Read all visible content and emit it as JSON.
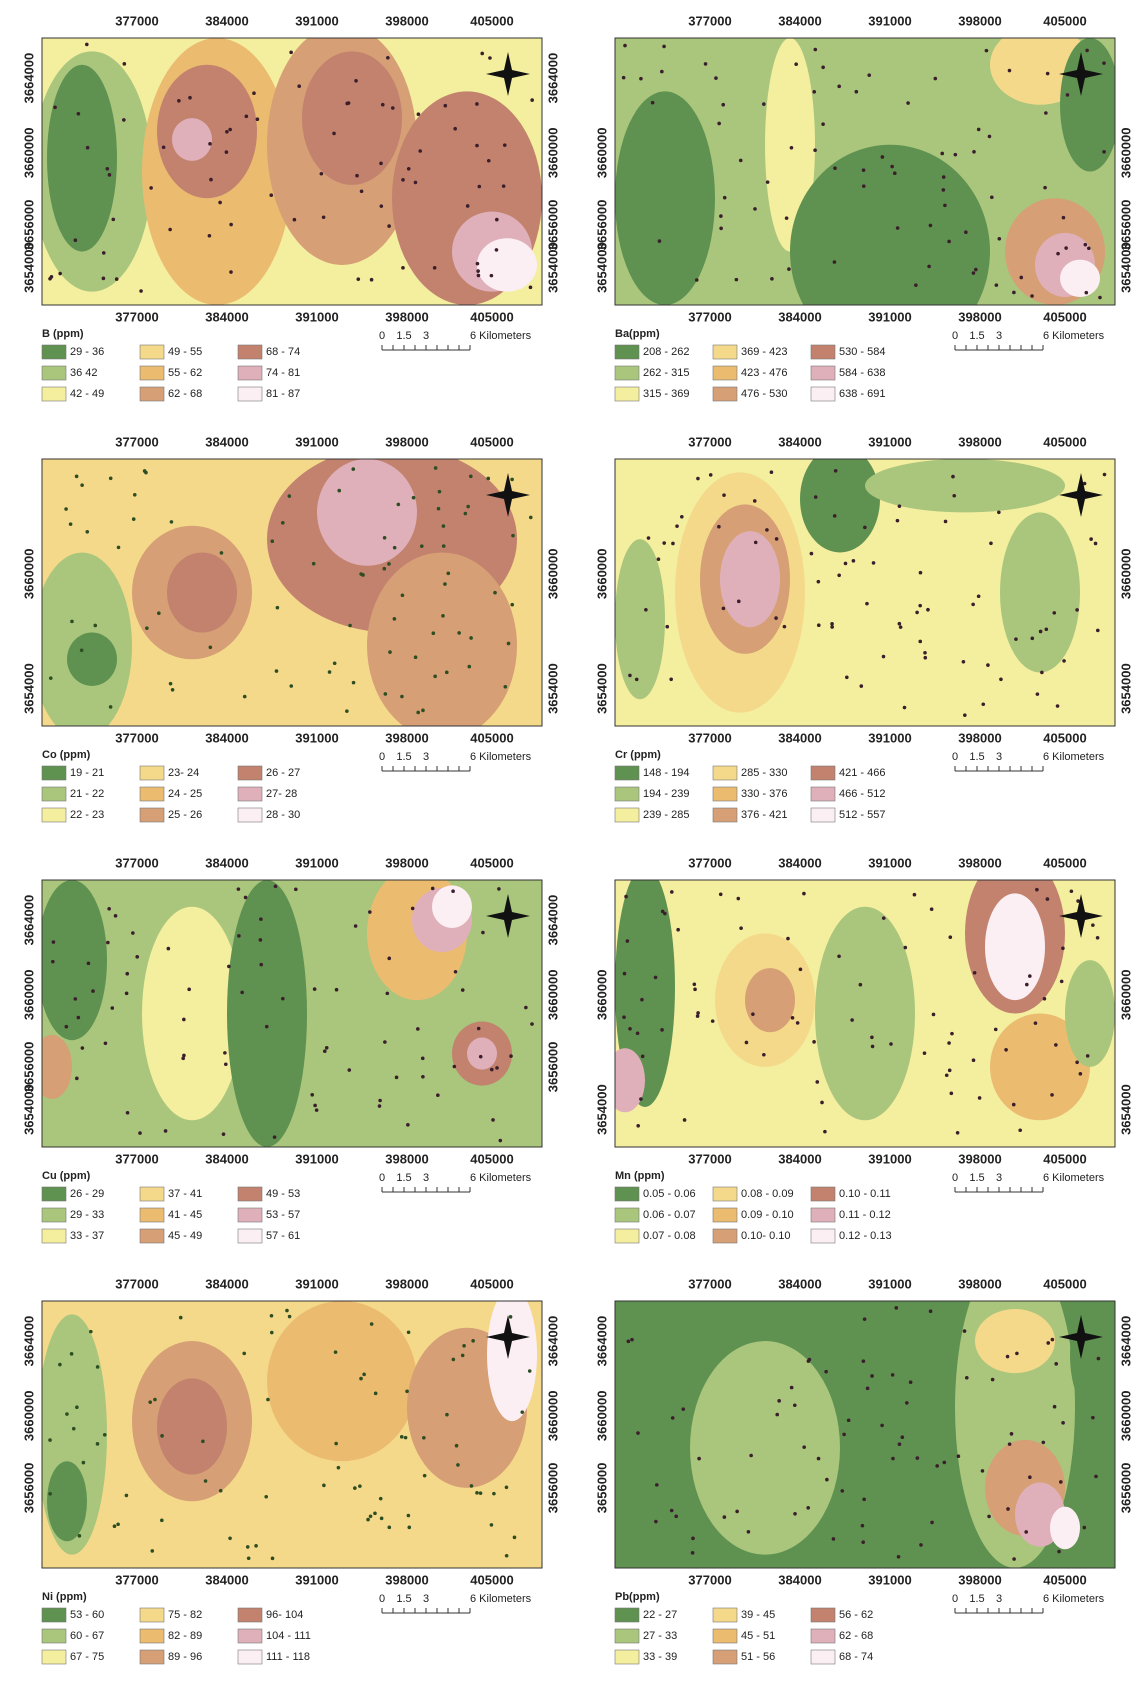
{
  "x_ticks": [
    "377000",
    "384000",
    "391000",
    "398000",
    "405000"
  ],
  "scale_labels": [
    "0",
    "1.5",
    "3",
    "6 Kilometers"
  ],
  "legend_colors": [
    "#5f9150",
    "#a9c67c",
    "#f4ee9f",
    "#f4d98b",
    "#ebbb70",
    "#d69f75",
    "#c2826e",
    "#e0b0ba",
    "#fbeff4"
  ],
  "panels": [
    {
      "legend_title": "B (ppm)",
      "y_ticks_left": [
        "3664000",
        "3660000",
        "3656000",
        "3654000"
      ],
      "y_ticks_right": [
        "3664000",
        "3660000",
        "3656000",
        "3654000"
      ],
      "classes": [
        "29 - 36",
        "36  42",
        "42 - 49",
        "49 - 55",
        "55 - 62",
        "62 - 68",
        "68 - 74",
        "74 - 81",
        "81 - 87"
      ]
    },
    {
      "legend_title": "Ba(ppm)",
      "y_ticks_left": [
        "3660000",
        "3656000",
        "3654000"
      ],
      "y_ticks_right": [
        "3660000",
        "3656000",
        "3654000"
      ],
      "classes": [
        "208 - 262",
        "262 - 315",
        "315 - 369",
        "369 - 423",
        "423 - 476",
        "476 - 530",
        "530 - 584",
        "584 - 638",
        "638 - 691"
      ]
    },
    {
      "legend_title": "Co (ppm)",
      "y_ticks_left": [
        "3660000",
        "3654000"
      ],
      "y_ticks_right": [
        "3660000",
        "3654000"
      ],
      "classes": [
        "19 - 21",
        "21 - 22",
        "22 - 23",
        "23- 24",
        "24 - 25",
        "25 - 26",
        "26 - 27",
        "27- 28",
        "28 - 30"
      ]
    },
    {
      "legend_title": "Cr (ppm)",
      "y_ticks_left": [
        "3660000",
        "3654000"
      ],
      "y_ticks_right": [
        "3660000",
        "3654000"
      ],
      "classes": [
        "148 - 194",
        "194 - 239",
        "239 - 285",
        "285 - 330",
        "330 - 376",
        "376 - 421",
        "421 - 466",
        "466 - 512",
        "512 - 557"
      ]
    },
    {
      "legend_title": "Cu (ppm)",
      "y_ticks_left": [
        "3664000",
        "3660000",
        "3656000",
        "3654000"
      ],
      "y_ticks_right": [
        "3664000",
        "3660000",
        "3656000"
      ],
      "classes": [
        "26 - 29",
        "29 - 33",
        "33 - 37",
        "37 - 41",
        "41 - 45",
        "45 - 49",
        "49 - 53",
        "53 - 57",
        "57 - 61"
      ]
    },
    {
      "legend_title": "Mn (ppm)",
      "y_ticks_left": [
        "3660000",
        "3654000"
      ],
      "y_ticks_right": [
        "3660000",
        "3654000"
      ],
      "classes": [
        "0.05 - 0.06",
        "0.06 - 0.07",
        "0.07 - 0.08",
        "0.08 - 0.09",
        "0.09 - 0.10",
        "0.10- 0.10",
        "0.10 - 0.11",
        "0.11 - 0.12",
        "0.12 - 0.13"
      ]
    },
    {
      "legend_title": "Ni (ppm)",
      "y_ticks_left": [
        "3664000",
        "3660000",
        "3656000"
      ],
      "y_ticks_right": [
        "3664000",
        "3660000",
        "3656000"
      ],
      "classes": [
        "53 - 60",
        "60 - 67",
        "67 - 75",
        "75 - 82",
        "82 - 89",
        "89 - 96",
        "96- 104",
        "104 - 111",
        "111 - 118"
      ]
    },
    {
      "legend_title": "Pb(ppm)",
      "y_ticks_left": [
        "3664000",
        "3660000",
        "3656000"
      ],
      "y_ticks_right": [
        "3664000",
        "3660000",
        "3656000"
      ],
      "classes": [
        "22 - 27",
        "27 - 33",
        "33 - 39",
        "39 - 45",
        "45 - 51",
        "51 - 56",
        "56 - 62",
        "62 - 68",
        "68 - 74"
      ]
    }
  ]
}
